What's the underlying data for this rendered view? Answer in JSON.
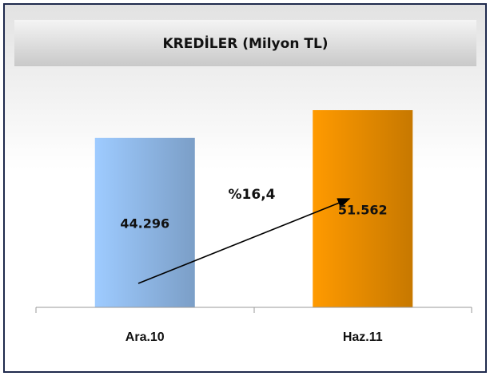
{
  "chart_data": {
    "type": "bar",
    "title": "KREDİLER (Milyon TL)",
    "categories": [
      "Ara.10",
      "Haz.11"
    ],
    "values": [
      44296,
      51562
    ],
    "value_labels": [
      "44.296",
      "51.562"
    ],
    "colors": [
      "#9ecbff",
      "#ff9a00"
    ],
    "annotations": [
      "%16,4"
    ]
  }
}
